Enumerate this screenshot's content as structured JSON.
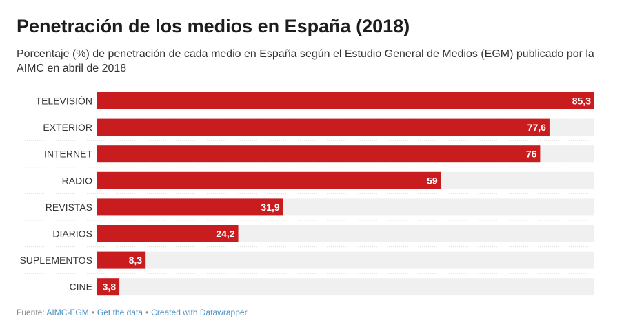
{
  "header": {
    "title": "Penetración de los medios en España (2018)",
    "subtitle": "Porcentaje (%) de penetración de cada medio en España según el Estudio General de Medios (EGM) publicado por la AIMC en abril de 2018"
  },
  "chart_data": {
    "type": "bar",
    "orientation": "horizontal",
    "categories": [
      "TELEVISIÓN",
      "EXTERIOR",
      "INTERNET",
      "RADIO",
      "REVISTAS",
      "DIARIOS",
      "SUPLEMENTOS",
      "CINE"
    ],
    "values": [
      85.3,
      77.6,
      76,
      59,
      31.9,
      24.2,
      8.3,
      3.8
    ],
    "value_labels": [
      "85,3",
      "77,6",
      "76",
      "59",
      "31,9",
      "24,2",
      "8,3",
      "3,8"
    ],
    "xlim": [
      0,
      85.3
    ],
    "colors": {
      "bar": "#c91c1e",
      "track": "#f0f0f0",
      "value_text": "#ffffff"
    }
  },
  "footer": {
    "source_label": "Fuente:",
    "source_link": "AIMC-EGM",
    "get_data": "Get the data",
    "created_with": "Created with Datawrapper"
  }
}
